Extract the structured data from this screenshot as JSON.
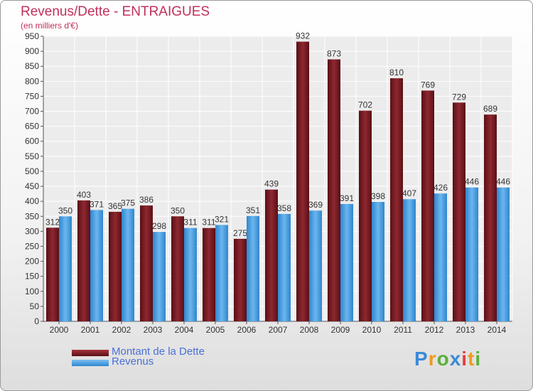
{
  "title": "Revenus/Dette - ENTRAIGUES",
  "subtitle": "(en milliers d'€)",
  "logo": "Proxiti",
  "colors": {
    "dette": "#7a1a22",
    "revenus": "#4aa0e2",
    "title": "#c0305a",
    "legend_text": "#4a70d8"
  },
  "chart_data": {
    "type": "bar",
    "categories": [
      "2000",
      "2001",
      "2002",
      "2003",
      "2004",
      "2005",
      "2006",
      "2007",
      "2008",
      "2009",
      "2010",
      "2011",
      "2012",
      "2013",
      "2014"
    ],
    "series": [
      {
        "name": "Montant de la Dette",
        "values": [
          312,
          403,
          365,
          386,
          350,
          311,
          275,
          439,
          932,
          873,
          702,
          810,
          769,
          729,
          689
        ]
      },
      {
        "name": "Revenus",
        "values": [
          350,
          371,
          375,
          298,
          311,
          321,
          351,
          358,
          369,
          391,
          398,
          407,
          426,
          446,
          446
        ]
      }
    ],
    "ylim": [
      0,
      950
    ],
    "yticks": [
      0,
      50,
      100,
      150,
      200,
      250,
      300,
      350,
      400,
      450,
      500,
      550,
      600,
      650,
      700,
      750,
      800,
      850,
      900,
      950
    ],
    "grid": true,
    "legend": "bottom-left"
  }
}
